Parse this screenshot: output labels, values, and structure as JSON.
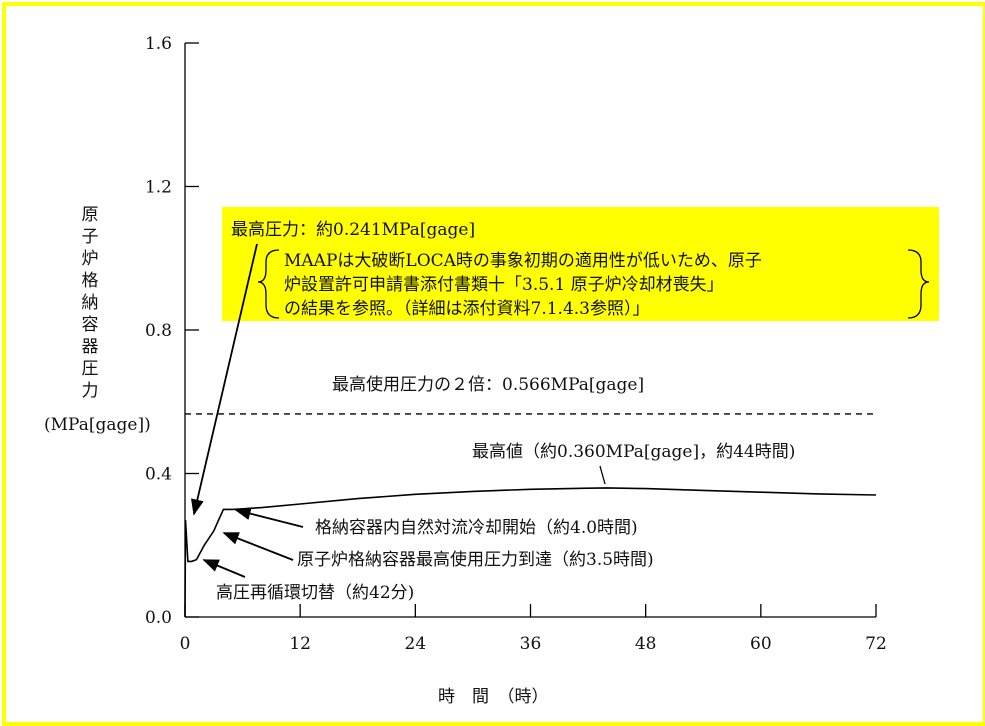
{
  "chart_data": {
    "type": "line",
    "ylabel_chars": [
      "原",
      "子",
      "炉",
      "格",
      "納",
      "容",
      "器",
      "圧",
      "力"
    ],
    "ylabel_unit": "(MPa[gage])",
    "xlabel": "時　間　（時）",
    "xlim": [
      0,
      72
    ],
    "ylim": [
      0,
      1.6
    ],
    "x_ticks": [
      "0",
      "12",
      "24",
      "36",
      "48",
      "60",
      "72"
    ],
    "y_ticks": [
      "0.0",
      "0.4",
      "0.8",
      "1.2",
      "1.6"
    ],
    "series": [
      {
        "x": [
          0,
          0.05,
          0.3,
          0.7,
          1.2,
          2.0,
          3.0,
          3.5,
          4.0,
          5.0,
          8.0,
          12.0,
          18.0,
          24.0,
          30.0,
          36.0,
          42.0,
          44.0,
          48.0,
          54.0,
          60.0,
          66.0,
          72.0
        ],
        "y": [
          0.0,
          0.27,
          0.155,
          0.155,
          0.16,
          0.2,
          0.24,
          0.27,
          0.3,
          0.3,
          0.305,
          0.315,
          0.33,
          0.342,
          0.35,
          0.356,
          0.359,
          0.36,
          0.358,
          0.353,
          0.348,
          0.343,
          0.34
        ]
      }
    ],
    "reference_line": {
      "y": 0.566,
      "label": "最高使用圧力の２倍：0.566MPa[gage]"
    },
    "annotations": {
      "max_pressure_title": "最高圧力：約0.241MPa[gage]",
      "note_line1": "MAAPは大破断LOCA時の事象初期の適用性が低いため、原子",
      "note_line2": "炉設置許可申請書添付書類十「3.5.1 原子炉冷却材喪失」",
      "note_line3": "の結果を参照。（詳細は添付資料7.1.4.3参照）」",
      "peak": "最高値（約0.360MPa[gage]，約44時間)",
      "natural_convection": "格納容器内自然対流冷却開始（約4.0時間)",
      "design_pressure": "原子炉格納容器最高使用圧力到達（約3.5時間)",
      "recirculation": "高圧再循環切替（約42分)"
    },
    "colors": {
      "frame": "#ffff00",
      "highlight": "#ffff00",
      "line": "#000000"
    }
  }
}
